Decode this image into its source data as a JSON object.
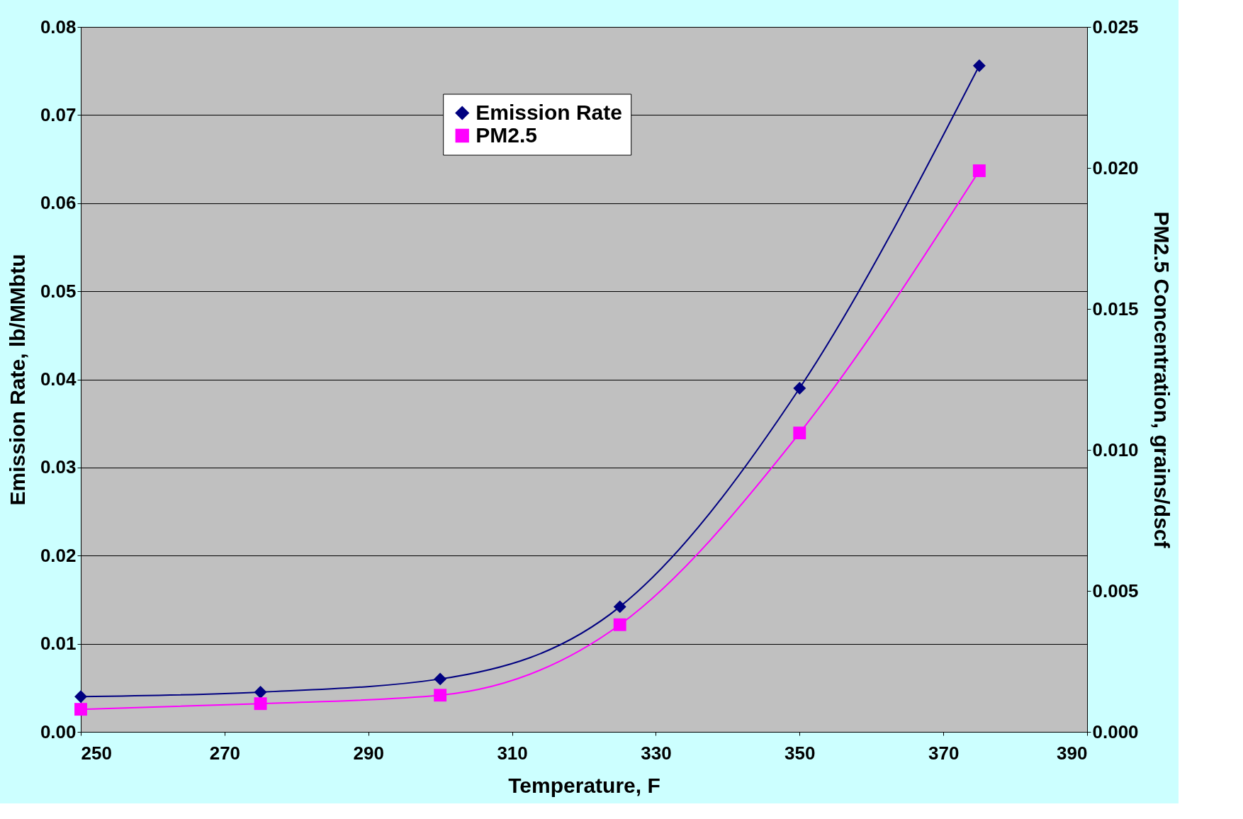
{
  "chart_data": {
    "type": "line",
    "xlabel": "Temperature, F",
    "ylabel": "Emission Rate, lb/MMbtu",
    "y2label": "PM2.5 Concentration, grains/dscf",
    "x": [
      250,
      275,
      300,
      325,
      350,
      375
    ],
    "series": [
      {
        "name": "Emission Rate",
        "color": "#000080",
        "marker": "diamond",
        "values": [
          0.004,
          0.0045,
          0.006,
          0.0142,
          0.039,
          0.0756
        ]
      },
      {
        "name": "PM2.5",
        "color": "#ff00ff",
        "marker": "square",
        "axis": "y2",
        "values": [
          0.0008,
          0.001,
          0.0013,
          0.0038,
          0.0106,
          0.0199
        ]
      }
    ],
    "xlim": [
      250,
      390
    ],
    "xticks": [
      250,
      270,
      290,
      310,
      330,
      350,
      370,
      390
    ],
    "ylim": [
      0,
      0.08
    ],
    "yticks": [
      {
        "value": 0,
        "label": "0.00"
      },
      {
        "value": 0.01,
        "label": "0.01"
      },
      {
        "value": 0.02,
        "label": "0.02"
      },
      {
        "value": 0.03,
        "label": "0.03"
      },
      {
        "value": 0.04,
        "label": "0.04"
      },
      {
        "value": 0.05,
        "label": "0.05"
      },
      {
        "value": 0.06,
        "label": "0.06"
      },
      {
        "value": 0.07,
        "label": "0.07"
      },
      {
        "value": 0.08,
        "label": "0.08"
      }
    ],
    "y2lim": [
      0,
      0.025
    ],
    "y2ticks": [
      {
        "value": 0,
        "label": "0.000"
      },
      {
        "value": 0.005,
        "label": "0.005"
      },
      {
        "value": 0.01,
        "label": "0.010"
      },
      {
        "value": 0.015,
        "label": "0.015"
      },
      {
        "value": 0.02,
        "label": "0.020"
      },
      {
        "value": 0.025,
        "label": "0.025"
      }
    ],
    "grid": "y",
    "legend": "top",
    "line_style": "solid"
  }
}
